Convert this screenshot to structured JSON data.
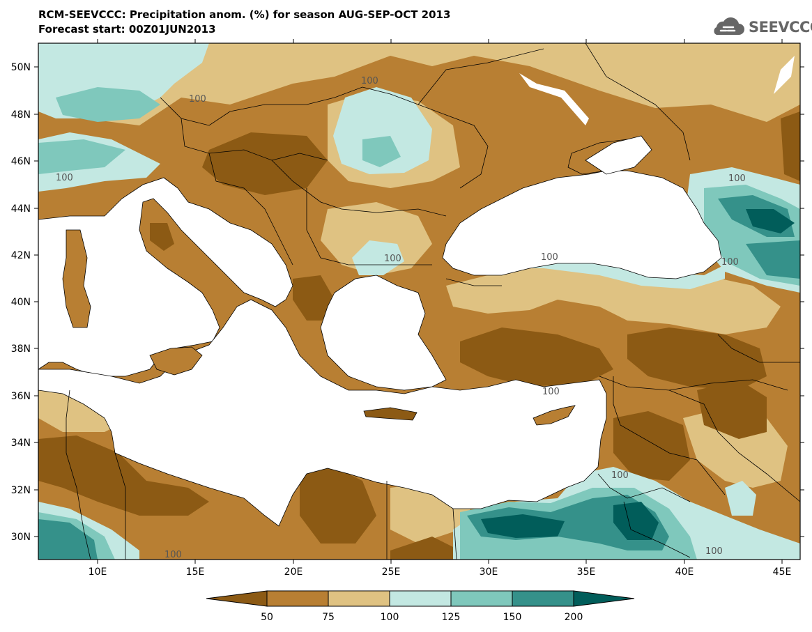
{
  "header": {
    "title_line1": "RCM-SEEVCCC: Precipitation anom. (%) for season AUG-SEP-OCT 2013",
    "title_line2": "Forecast start: 00Z01JUN2013"
  },
  "logo": {
    "text": "SEEVCCC",
    "icon": "cloud-icon"
  },
  "map": {
    "lat_ticks": [
      "50N",
      "48N",
      "46N",
      "44N",
      "42N",
      "40N",
      "38N",
      "36N",
      "34N",
      "32N",
      "30N"
    ],
    "lon_ticks": [
      "10E",
      "15E",
      "20E",
      "25E",
      "30E",
      "35E",
      "40E",
      "45E"
    ],
    "contour_labels": [
      "100",
      "100",
      "100",
      "100",
      "100",
      "100",
      "100",
      "100",
      "100",
      "100",
      "100"
    ]
  },
  "legend": {
    "boundaries": [
      "50",
      "75",
      "100",
      "125",
      "150",
      "200"
    ],
    "colors": [
      "#8c5a14",
      "#b87f33",
      "#dfc282",
      "#c3e8e2",
      "#7fc8bc",
      "#35918a",
      "#015d5a"
    ]
  }
}
